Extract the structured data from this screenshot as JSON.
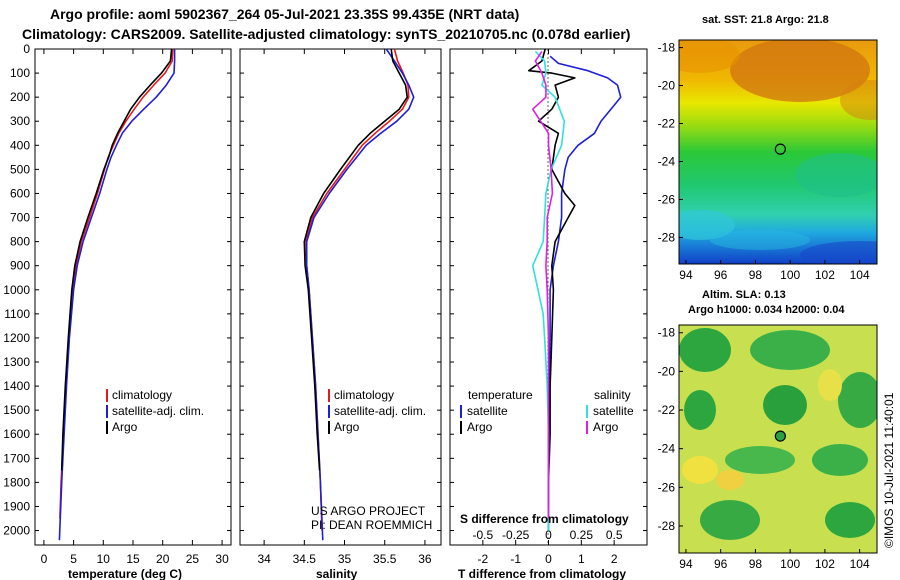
{
  "header": {
    "line1": "Argo profile: aoml 5902367_264 05-Jul-2021 23.35S 99.435E (NRT data)",
    "line2": "Climatology: CARS2009. Satellite-adjusted climatology: synTS_20210705.nc (0.078d earlier)"
  },
  "colors": {
    "climatology": "#e41a1c",
    "satellite": "#1f1fd6",
    "argo": "#000000",
    "salinity": "#30e0e0",
    "salinity_argo": "#e020e0"
  },
  "depth_axis": {
    "ticks": [
      "0",
      "100",
      "200",
      "300",
      "400",
      "500",
      "600",
      "700",
      "800",
      "900",
      "1000",
      "1100",
      "1200",
      "1300",
      "1400",
      "1500",
      "1600",
      "1700",
      "1800",
      "1900",
      "2000"
    ]
  },
  "chart_data": [
    {
      "id": "temperature",
      "type": "line",
      "xlabel": "temperature (deg C)",
      "xlim": [
        -1.5,
        31.5
      ],
      "ylim": [
        2060,
        0
      ],
      "xticks": [
        "0",
        "5",
        "10",
        "15",
        "20",
        "25",
        "30"
      ],
      "xtick_values": [
        0,
        5,
        10,
        15,
        20,
        25,
        30
      ],
      "legend": [
        "climatology",
        "satellite-adj. clim.",
        "Argo"
      ],
      "series": [
        {
          "name": "climatology",
          "y": [
            0,
            50,
            100,
            150,
            200,
            250,
            300,
            350,
            400,
            450,
            500,
            600,
            700,
            800,
            900,
            1000,
            1200,
            1400,
            1600,
            1800,
            1950
          ],
          "x": [
            21.7,
            21.6,
            20.4,
            18.5,
            16.7,
            15.2,
            13.8,
            12.6,
            11.7,
            10.8,
            10.2,
            9.0,
            7.7,
            6.3,
            5.4,
            4.8,
            4.2,
            3.7,
            3.3,
            2.9,
            2.7
          ]
        },
        {
          "name": "satellite-adj. clim.",
          "y": [
            0,
            50,
            100,
            150,
            200,
            250,
            300,
            350,
            400,
            450,
            500,
            600,
            700,
            800,
            900,
            1000,
            1200,
            1400,
            1600,
            1800,
            2040
          ],
          "x": [
            22.0,
            22.0,
            21.9,
            20.6,
            18.9,
            16.8,
            14.8,
            13.2,
            12.2,
            11.3,
            10.6,
            9.4,
            8.0,
            6.6,
            5.6,
            5.0,
            4.3,
            3.8,
            3.4,
            3.0,
            2.6
          ]
        },
        {
          "name": "Argo",
          "y": [
            0,
            50,
            100,
            150,
            200,
            250,
            300,
            350,
            400,
            450,
            500,
            600,
            700,
            800,
            900,
            1000,
            1200,
            1400,
            1600,
            1750
          ],
          "x": [
            21.5,
            21.3,
            19.8,
            17.9,
            16.1,
            14.6,
            13.5,
            12.4,
            11.5,
            10.9,
            10.1,
            8.8,
            7.4,
            6.1,
            5.2,
            4.7,
            4.1,
            3.6,
            3.2,
            3.0
          ]
        }
      ]
    },
    {
      "id": "salinity",
      "type": "line",
      "xlabel": "salinity",
      "xlim": [
        33.7,
        36.2
      ],
      "ylim": [
        2060,
        0
      ],
      "xticks": [
        "34",
        "34.5",
        "35",
        "35.5",
        "36"
      ],
      "xtick_values": [
        34,
        34.5,
        35,
        35.5,
        36
      ],
      "legend": [
        "climatology",
        "satellite-adj. clim.",
        "Argo"
      ],
      "annotation": [
        "US ARGO PROJECT",
        "PI: DEAN ROEMMICH"
      ],
      "series": [
        {
          "name": "climatology",
          "y": [
            0,
            50,
            100,
            150,
            200,
            250,
            300,
            350,
            400,
            500,
            600,
            700,
            800,
            900,
            1000,
            1200,
            1400,
            1600,
            1800,
            2000
          ],
          "x": [
            35.62,
            35.66,
            35.73,
            35.79,
            35.8,
            35.72,
            35.56,
            35.38,
            35.22,
            35.0,
            34.78,
            34.6,
            34.52,
            34.53,
            34.56,
            34.6,
            34.64,
            34.67,
            34.7,
            34.72
          ]
        },
        {
          "name": "satellite-adj. clim.",
          "y": [
            0,
            50,
            100,
            150,
            200,
            250,
            300,
            350,
            400,
            500,
            600,
            700,
            800,
            900,
            1000,
            1200,
            1400,
            1600,
            1800,
            2040
          ],
          "x": [
            35.52,
            35.62,
            35.72,
            35.8,
            35.86,
            35.8,
            35.65,
            35.45,
            35.27,
            35.03,
            34.81,
            34.62,
            34.53,
            34.53,
            34.56,
            34.6,
            34.64,
            34.67,
            34.7,
            34.73
          ]
        },
        {
          "name": "Argo",
          "y": [
            0,
            50,
            100,
            150,
            200,
            250,
            300,
            350,
            400,
            500,
            600,
            700,
            800,
            900,
            1000,
            1200,
            1400,
            1600,
            1750
          ],
          "x": [
            35.58,
            35.6,
            35.68,
            35.76,
            35.78,
            35.68,
            35.5,
            35.32,
            35.17,
            34.95,
            34.74,
            34.58,
            34.5,
            34.51,
            34.55,
            34.59,
            34.63,
            34.66,
            34.69
          ]
        }
      ]
    },
    {
      "id": "difference",
      "type": "line",
      "xlabel": "T difference from climatology",
      "xlabel2": "S difference from climatology",
      "xlim": [
        -3,
        3
      ],
      "ylim": [
        2060,
        0
      ],
      "xticks": [
        "-2",
        "-1",
        "0",
        "1",
        "2"
      ],
      "xtick_values": [
        -2,
        -1,
        0,
        1,
        2
      ],
      "s_scale_factor": 4,
      "s_ticks": [
        "-0.5",
        "-0.25",
        "0",
        "0.25",
        "0.5"
      ],
      "s_tick_values": [
        -0.5,
        -0.25,
        0,
        0.25,
        0.5
      ],
      "legend_titles": [
        "temperature",
        "salinity"
      ],
      "legend_left": [
        "satellite",
        "Argo"
      ],
      "legend_right": [
        "satellite",
        "Argo"
      ],
      "series": [
        {
          "name": "T satellite",
          "y": [
            30,
            60,
            90,
            120,
            150,
            200,
            250,
            300,
            350,
            400,
            450,
            500,
            600,
            700,
            800,
            900,
            1000,
            1200,
            1400,
            1600,
            1800,
            2000
          ],
          "x": [
            0.05,
            0.3,
            1.2,
            1.8,
            2.1,
            2.2,
            1.9,
            1.6,
            1.4,
            0.9,
            0.6,
            0.5,
            0.4,
            0.4,
            0.3,
            0.15,
            0.05,
            0.05,
            0.02,
            0.0,
            0.0,
            0.0
          ]
        },
        {
          "name": "T Argo",
          "y": [
            0,
            50,
            90,
            100,
            120,
            150,
            200,
            250,
            300,
            350,
            400,
            500,
            600,
            650,
            700,
            800,
            900,
            1000,
            1200,
            1400,
            1600,
            1800,
            1900
          ],
          "x": [
            -0.1,
            -0.2,
            -0.6,
            0.1,
            0.8,
            0.2,
            0.3,
            0.1,
            -0.3,
            0.3,
            0.2,
            0.1,
            0.5,
            0.8,
            0.6,
            0.2,
            0.1,
            0.15,
            0.1,
            0.05,
            0.05,
            0.0,
            0.0
          ]
        },
        {
          "name": "S satellite",
          "y": [
            10,
            50,
            100,
            150,
            200,
            300,
            400,
            500,
            600,
            700,
            800,
            900,
            1000,
            1100,
            1200,
            1400,
            1600,
            1800,
            2000
          ],
          "x": [
            -0.1,
            -0.03,
            -0.02,
            -0.05,
            0.05,
            0.12,
            0.1,
            0.02,
            -0.02,
            -0.03,
            -0.04,
            -0.12,
            -0.08,
            -0.04,
            -0.03,
            -0.01,
            0.0,
            0.0,
            0.0
          ]
        },
        {
          "name": "S Argo",
          "y": [
            10,
            50,
            100,
            150,
            200,
            250,
            300,
            350,
            400,
            500,
            600,
            700,
            800,
            900,
            1000,
            1200,
            1400,
            1600,
            1800,
            1950
          ],
          "x": [
            -0.05,
            -0.1,
            -0.05,
            -0.02,
            -0.02,
            -0.12,
            -0.06,
            0.0,
            0.0,
            0.02,
            0.03,
            -0.01,
            -0.01,
            -0.02,
            -0.01,
            0.0,
            0.0,
            0.0,
            0.0,
            0.0
          ]
        }
      ]
    },
    {
      "id": "sst-map",
      "type": "heatmap",
      "title": "sat. SST: 21.8 Argo: 21.8",
      "xticks": [
        "94",
        "96",
        "98",
        "100",
        "102",
        "104"
      ],
      "xtick_values": [
        94,
        96,
        98,
        100,
        102,
        104
      ],
      "yticks": [
        "-18",
        "-20",
        "-22",
        "-24",
        "-26",
        "-28"
      ],
      "ytick_values": [
        -18,
        -20,
        -22,
        -24,
        -26,
        -28
      ],
      "xlim": [
        93.6,
        105.0
      ],
      "ylim": [
        -29.4,
        -17.6
      ],
      "marker": {
        "lon": 99.435,
        "lat": -23.35
      }
    },
    {
      "id": "sla-map",
      "type": "heatmap",
      "title": "Altim. SLA: 0.13",
      "subtitle": "Argo h1000: 0.034 h2000: 0.04",
      "xticks": [
        "94",
        "96",
        "98",
        "100",
        "102",
        "104"
      ],
      "xtick_values": [
        94,
        96,
        98,
        100,
        102,
        104
      ],
      "yticks": [
        "-18",
        "-20",
        "-22",
        "-24",
        "-26",
        "-28"
      ],
      "ytick_values": [
        -18,
        -20,
        -22,
        -24,
        -26,
        -28
      ],
      "xlim": [
        93.6,
        105.0
      ],
      "ylim": [
        -29.4,
        -17.6
      ],
      "marker": {
        "lon": 99.435,
        "lat": -23.35
      }
    }
  ],
  "credit": "©IMOS 10-Jul-2021 11:40:01"
}
